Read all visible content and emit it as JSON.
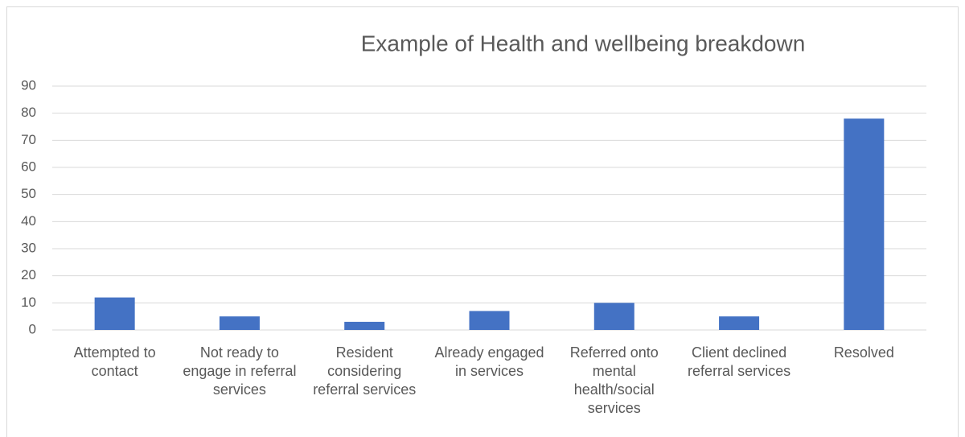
{
  "chart_data": {
    "type": "bar",
    "title": "Example of Health and wellbeing breakdown",
    "categories": [
      "Attempted to contact",
      "Not ready to engage in referral services",
      "Resident considering referral services",
      "Already engaged in services",
      "Referred onto mental health/social services",
      "Client declined referral services",
      "Resolved"
    ],
    "values": [
      12,
      5,
      3,
      7,
      10,
      5,
      78
    ],
    "color": "#4472c4",
    "ylim": [
      0,
      90
    ],
    "yticks": [
      0,
      10,
      20,
      30,
      40,
      50,
      60,
      70,
      80,
      90
    ],
    "grid": true
  }
}
